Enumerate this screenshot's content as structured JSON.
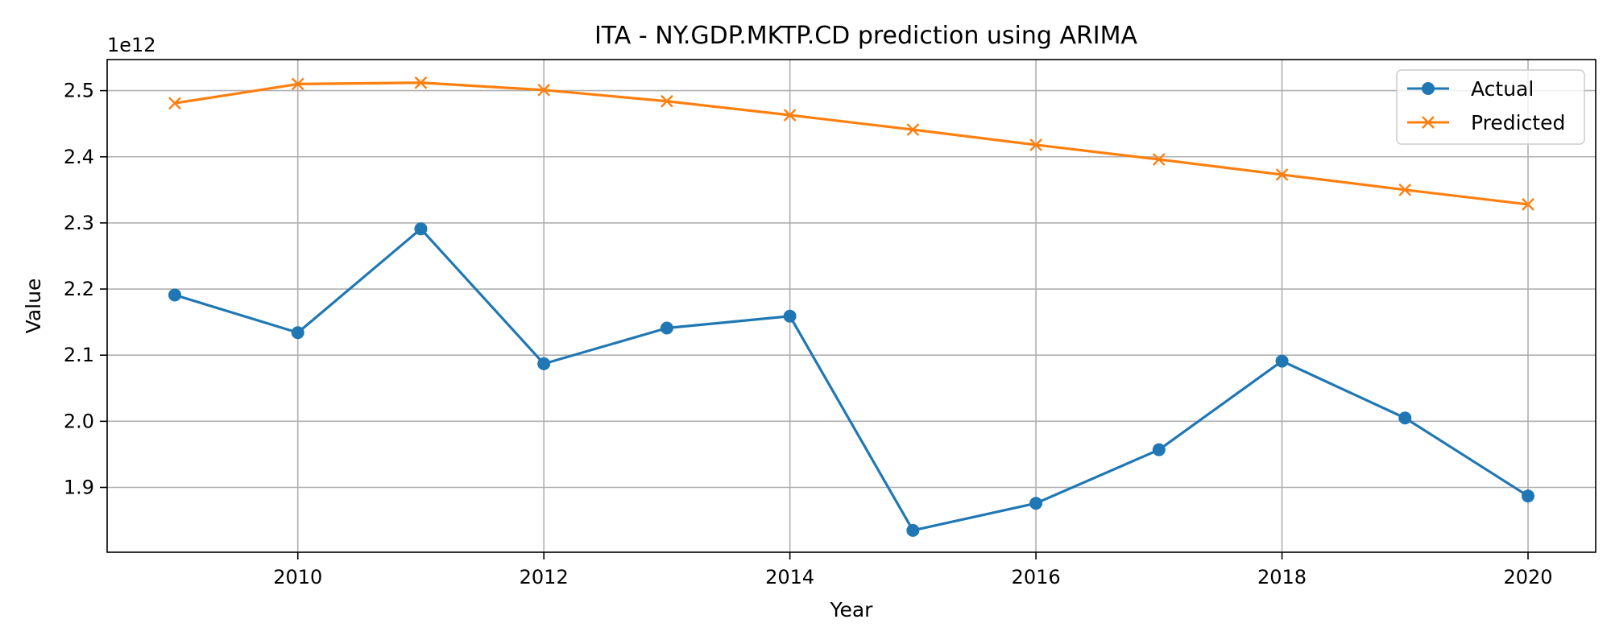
{
  "chart_data": {
    "type": "line",
    "title": "ITA - NY.GDP.MKTP.CD prediction using ARIMA",
    "xlabel": "Year",
    "ylabel": "Value",
    "y_offset_label": "1e12",
    "x": [
      2009,
      2010,
      2011,
      2012,
      2013,
      2014,
      2015,
      2016,
      2017,
      2018,
      2019,
      2020
    ],
    "xlim": [
      2008.45,
      2020.55
    ],
    "ylim": [
      1.802,
      2.547
    ],
    "x_ticks": [
      2010,
      2012,
      2014,
      2016,
      2018,
      2020
    ],
    "x_tick_labels": [
      "2010",
      "2012",
      "2014",
      "2016",
      "2018",
      "2020"
    ],
    "y_ticks": [
      1.9,
      2.0,
      2.1,
      2.2,
      2.3,
      2.4,
      2.5
    ],
    "y_tick_labels": [
      "1.9",
      "2.0",
      "2.1",
      "2.2",
      "2.3",
      "2.4",
      "2.5"
    ],
    "grid": true,
    "legend_position": "top-right",
    "series": [
      {
        "name": "Actual",
        "color": "#1f77b4",
        "marker": "circle",
        "values": [
          2.191,
          2.134,
          2.291,
          2.087,
          2.141,
          2.159,
          1.835,
          1.876,
          1.957,
          2.091,
          2.005,
          1.887
        ]
      },
      {
        "name": "Predicted",
        "color": "#ff7f0e",
        "marker": "x",
        "values": [
          2.481,
          2.51,
          2.512,
          2.501,
          2.484,
          2.463,
          2.441,
          2.418,
          2.396,
          2.373,
          2.35,
          2.328
        ]
      }
    ]
  }
}
